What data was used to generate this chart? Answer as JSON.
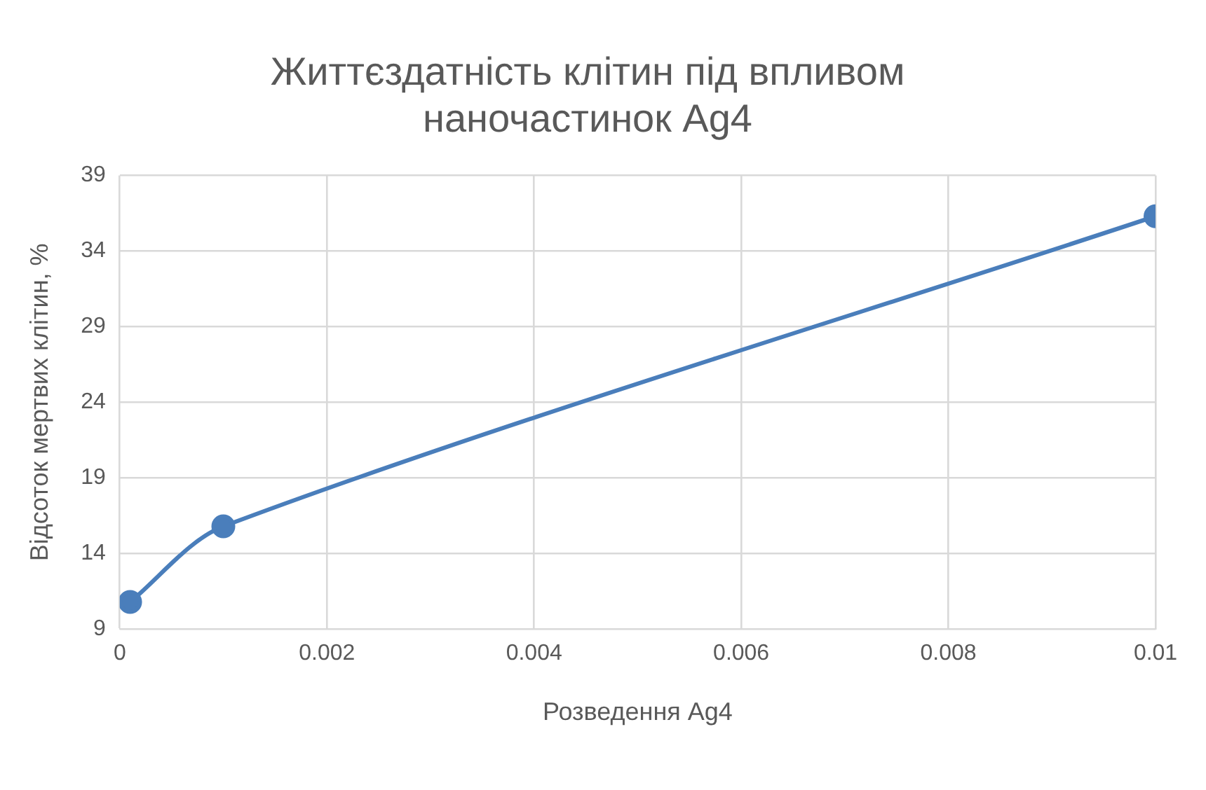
{
  "chart_data": {
    "type": "line",
    "title": "Життєздатність клітин під впливом наночастинок Ag4",
    "xlabel": "Розведення Ag4",
    "ylabel": "Відсоток мертвих клітин, %",
    "x": [
      0.0001,
      0.001,
      0.01
    ],
    "series": [
      {
        "color": "#4a7ebb",
        "values": [
          10.8,
          15.8,
          36.3
        ]
      }
    ],
    "xlim": [
      0,
      0.01
    ],
    "xticks": [
      0,
      0.002,
      0.004,
      0.006,
      0.008,
      0.01
    ],
    "ylim": [
      9,
      39
    ],
    "yticks": [
      9,
      14,
      19,
      24,
      29,
      34,
      39
    ],
    "grid": true,
    "legend": false,
    "marker": "circle",
    "line_style": "solid"
  }
}
